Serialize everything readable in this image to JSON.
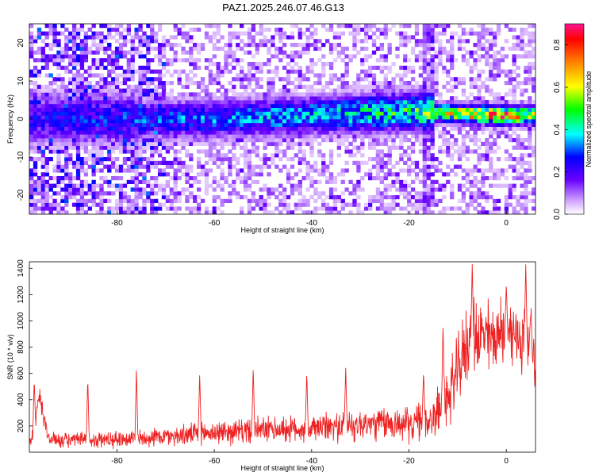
{
  "title": "PAZ1.2025.246.07.46.G13",
  "chart_data": [
    {
      "type": "heatmap",
      "xlabel": "Height of straight line (km)",
      "ylabel": "Frequency (Hz)",
      "xlim": [
        -98,
        6
      ],
      "ylim": [
        -25,
        25
      ],
      "xticks": [
        -80,
        -60,
        -40,
        -20,
        0
      ],
      "yticks": [
        -20,
        -10,
        0,
        10,
        20
      ],
      "colorbar": {
        "label": "Normalized spectral amplitude",
        "range": [
          0,
          0.9
        ],
        "ticks": [
          0.0,
          0.2,
          0.4,
          0.6,
          0.8
        ],
        "colors": [
          "#ffffff",
          "#d9b3ff",
          "#6a00ff",
          "#0000ff",
          "#00ffff",
          "#00ff00",
          "#ffff00",
          "#ff8000",
          "#ff0000",
          "#ff1493"
        ]
      },
      "ridge": {
        "description_points_x": [
          -98,
          -80,
          -60,
          -40,
          -20,
          0,
          6
        ],
        "center_frequency": [
          0,
          0,
          0,
          1,
          2,
          1,
          1
        ],
        "peak_amplitude": [
          0.25,
          0.3,
          0.35,
          0.4,
          0.5,
          0.9,
          0.6
        ]
      }
    },
    {
      "type": "line",
      "xlabel": "Height of straight line (km)",
      "ylabel": "SNR (10 * v/v)",
      "xlim": [
        -98,
        6
      ],
      "ylim": [
        0,
        1450
      ],
      "xticks": [
        -80,
        -60,
        -40,
        -20,
        0
      ],
      "yticks": [
        200,
        400,
        600,
        800,
        1000,
        1200,
        1400
      ],
      "color": "#ee2222",
      "x_knots": [
        -98,
        -97,
        -96,
        -94,
        -90,
        -80,
        -70,
        -60,
        -50,
        -40,
        -30,
        -25,
        -20,
        -15,
        -12,
        -10,
        -8,
        -6,
        -4,
        -2,
        0,
        2,
        4,
        5,
        6
      ],
      "base": [
        80,
        150,
        420,
        100,
        90,
        100,
        120,
        150,
        170,
        180,
        210,
        220,
        210,
        260,
        420,
        600,
        850,
        900,
        870,
        880,
        920,
        880,
        850,
        800,
        750
      ],
      "amplitude": [
        50,
        120,
        150,
        70,
        70,
        80,
        90,
        110,
        120,
        130,
        150,
        160,
        160,
        200,
        280,
        330,
        380,
        380,
        360,
        330,
        340,
        350,
        360,
        330,
        300
      ],
      "peaks": [
        {
          "x": -97,
          "y": 560
        },
        {
          "x": -86,
          "y": 570
        },
        {
          "x": -76,
          "y": 640
        },
        {
          "x": -63,
          "y": 600
        },
        {
          "x": -52,
          "y": 650
        },
        {
          "x": -41,
          "y": 610
        },
        {
          "x": -33,
          "y": 640
        },
        {
          "x": -17,
          "y": 620
        },
        {
          "x": -13,
          "y": 980
        },
        {
          "x": -7,
          "y": 1430
        },
        {
          "x": 0,
          "y": 1280
        },
        {
          "x": 4,
          "y": 1440
        },
        {
          "x": 5,
          "y": 1060
        }
      ]
    }
  ]
}
